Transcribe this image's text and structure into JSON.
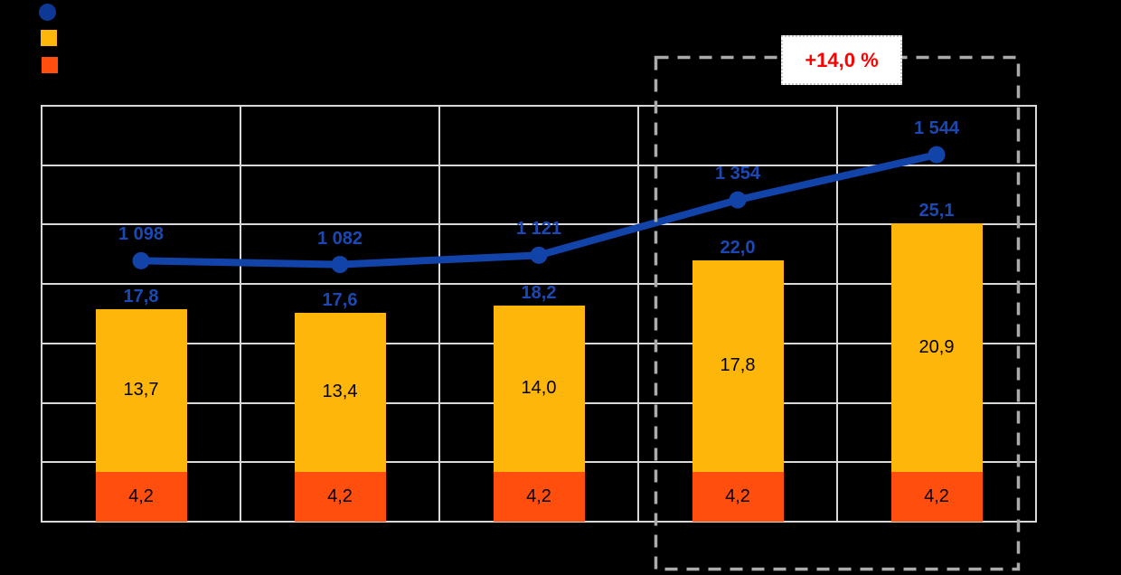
{
  "canvas": {
    "background": "#000000"
  },
  "legend": {
    "items": [
      {
        "name": "line-series",
        "marker": "circle",
        "color": "#0D3896",
        "label": ""
      },
      {
        "name": "yellow-series",
        "marker": "square",
        "color": "#FFB60A",
        "label": ""
      },
      {
        "name": "orange-series",
        "marker": "square",
        "color": "#FF4E0E",
        "label": ""
      }
    ]
  },
  "annotation": {
    "label": "+14,0 %",
    "text_color": "#FF0000",
    "box_color": "#ABABAB",
    "categories_spanned": [
      4,
      5
    ]
  },
  "chart_data": {
    "type": "combo-stacked-bar-line",
    "categories": [
      "",
      "",
      "",
      "",
      ""
    ],
    "series": [
      {
        "name": "orange-bottom-segment",
        "type": "bar",
        "color": "#FF4E0E",
        "label_color": "#000000",
        "values": [
          4.2,
          4.2,
          4.2,
          4.2,
          4.2
        ],
        "labels": [
          "4,2",
          "4,2",
          "4,2",
          "4,2",
          "4,2"
        ]
      },
      {
        "name": "yellow-top-segment",
        "type": "bar",
        "color": "#FFB60A",
        "label_color": "#000000",
        "values": [
          13.7,
          13.4,
          14.0,
          17.8,
          20.9
        ],
        "labels": [
          "13,7",
          "13,4",
          "14,0",
          "17,8",
          "20,9"
        ]
      },
      {
        "name": "blue-trend-line",
        "type": "line",
        "color": "#1243A8",
        "label_color": "#1A49B5",
        "values": [
          1098,
          1082,
          1121,
          1354,
          1544
        ],
        "labels": [
          "1 098",
          "1 082",
          "1 121",
          "1 354",
          "1 544"
        ]
      }
    ],
    "stack_totals": {
      "values": [
        17.8,
        17.6,
        18.2,
        22.0,
        25.1
      ],
      "labels": [
        "17,8",
        "17,6",
        "18,2",
        "22,0",
        "25,1"
      ],
      "color": "#1A49B5"
    },
    "primary_axis": {
      "min": 0,
      "max": 35,
      "gridline_step": 5,
      "labels_visible": false
    },
    "secondary_axis": {
      "min": 0,
      "max": 1750,
      "gridline_step": 250,
      "labels_visible": false
    },
    "grid": {
      "color": "#D9D9D9",
      "horizontal_intervals": 7,
      "vertical_intervals": 5
    },
    "legend_position": "top-left"
  }
}
